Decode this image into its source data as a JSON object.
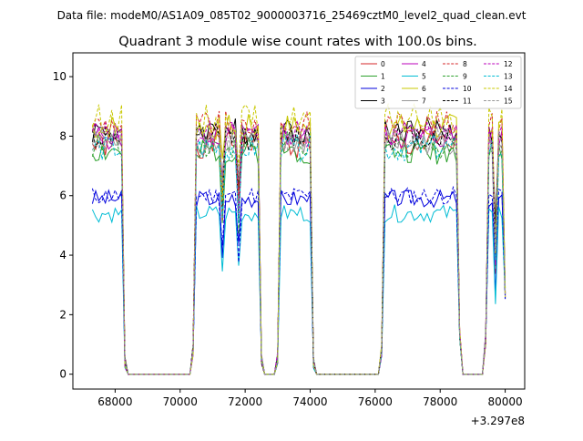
{
  "chart_data": {
    "type": "line",
    "suptitle": "Data file: modeM0/AS1A09_085T02_9000003716_25469cztM0_level2_quad_clean.evt",
    "title": "Quadrant 3 module wise count rates with 100.0s bins.",
    "xlabel": "",
    "ylabel": "",
    "x_offset_label": "+3.297e8",
    "x_tick_labels": [
      "68000",
      "70000",
      "72000",
      "74000",
      "76000",
      "78000",
      "80000"
    ],
    "x_ticks": [
      68000,
      70000,
      72000,
      74000,
      76000,
      78000,
      80000
    ],
    "y_tick_labels": [
      "0",
      "2",
      "4",
      "6",
      "8",
      "10"
    ],
    "y_ticks": [
      0,
      2,
      4,
      6,
      8,
      10
    ],
    "xlim": [
      66700,
      80600
    ],
    "ylim": [
      -0.5,
      10.8
    ],
    "legend_position": "top-right",
    "segments": [
      {
        "start": 67300,
        "end": 68300,
        "active": true
      },
      {
        "start": 68400,
        "end": 70300,
        "active": false
      },
      {
        "start": 70400,
        "end": 72500,
        "active": true
      },
      {
        "start": 72600,
        "end": 72900,
        "active": false
      },
      {
        "start": 73000,
        "end": 74100,
        "active": true
      },
      {
        "start": 74200,
        "end": 76100,
        "active": false
      },
      {
        "start": 76200,
        "end": 78600,
        "active": true
      },
      {
        "start": 78700,
        "end": 79300,
        "active": false
      },
      {
        "start": 79400,
        "end": 80000,
        "active": true
      }
    ],
    "dips": [
      {
        "x": 68300,
        "v": 0.2
      },
      {
        "x": 70400,
        "v": 0.6
      },
      {
        "x": 72500,
        "v": 0.35
      },
      {
        "x": 73000,
        "v": 0.35
      },
      {
        "x": 74100,
        "v": 0.2
      },
      {
        "x": 76200,
        "v": 0.6
      },
      {
        "x": 78600,
        "v": 1.2
      },
      {
        "x": 79400,
        "v": 1.0
      },
      {
        "x": 80000,
        "v": 2.5
      }
    ],
    "series": [
      {
        "name": "0",
        "color": "#d62728",
        "dash": "solid",
        "base": 7.7,
        "amp": 0.45,
        "seed": 1
      },
      {
        "name": "1",
        "color": "#2ca02c",
        "dash": "solid",
        "base": 7.5,
        "amp": 0.45,
        "seed": 2
      },
      {
        "name": "2",
        "color": "#0000dd",
        "dash": "solid",
        "base": 5.9,
        "amp": 0.3,
        "seed": 3
      },
      {
        "name": "3",
        "color": "#000000",
        "dash": "solid",
        "base": 8.2,
        "amp": 0.45,
        "seed": 4
      },
      {
        "name": "4",
        "color": "#bb00bb",
        "dash": "solid",
        "base": 8.0,
        "amp": 0.45,
        "seed": 5
      },
      {
        "name": "5",
        "color": "#00bcd4",
        "dash": "solid",
        "base": 5.4,
        "amp": 0.3,
        "seed": 6
      },
      {
        "name": "6",
        "color": "#c8c800",
        "dash": "solid",
        "base": 8.3,
        "amp": 0.45,
        "seed": 7
      },
      {
        "name": "7",
        "color": "#999999",
        "dash": "solid",
        "base": 7.8,
        "amp": 0.45,
        "seed": 8
      },
      {
        "name": "8",
        "color": "#d62728",
        "dash": "dashed",
        "base": 8.4,
        "amp": 0.45,
        "seed": 9
      },
      {
        "name": "9",
        "color": "#2ca02c",
        "dash": "dashed",
        "base": 7.7,
        "amp": 0.45,
        "seed": 10
      },
      {
        "name": "10",
        "color": "#0000dd",
        "dash": "dashed",
        "base": 6.0,
        "amp": 0.3,
        "seed": 11
      },
      {
        "name": "11",
        "color": "#000000",
        "dash": "dashed",
        "base": 8.0,
        "amp": 0.45,
        "seed": 12
      },
      {
        "name": "12",
        "color": "#bb00bb",
        "dash": "dashed",
        "base": 8.1,
        "amp": 0.45,
        "seed": 13
      },
      {
        "name": "13",
        "color": "#00bcd4",
        "dash": "dashed",
        "base": 7.6,
        "amp": 0.45,
        "seed": 14
      },
      {
        "name": "14",
        "color": "#c8c800",
        "dash": "dashed",
        "base": 8.6,
        "amp": 0.5,
        "seed": 15
      },
      {
        "name": "15",
        "color": "#999999",
        "dash": "dashed",
        "base": 7.9,
        "amp": 0.45,
        "seed": 16
      }
    ]
  }
}
